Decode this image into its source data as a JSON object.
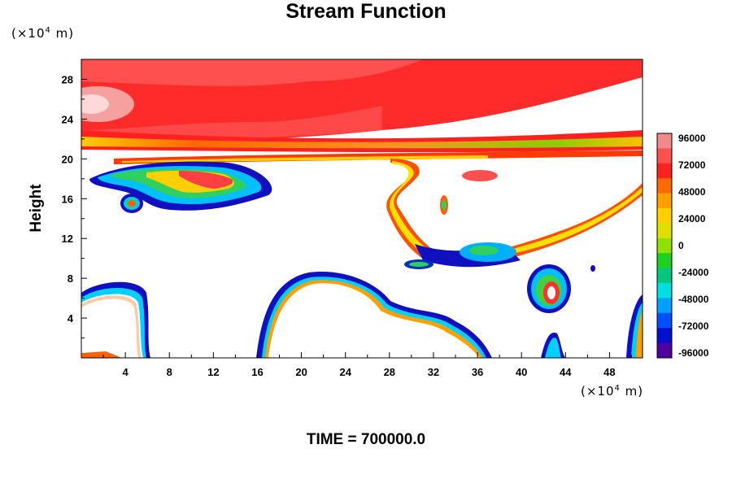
{
  "chart_data": {
    "type": "heatmap",
    "title": "Stream Function",
    "ylabel": "Height",
    "xlabel": "",
    "y_unit": "(×10⁴ m)",
    "x_unit": "(×10⁴ m)",
    "x_unit_mantissa": "(×10",
    "x_unit_exp": "4",
    "x_unit_tail": " m)",
    "footer": "TIME = 700000.0",
    "xlim": [
      0,
      51
    ],
    "ylim": [
      0,
      30
    ],
    "x_ticks": [
      4,
      8,
      12,
      16,
      20,
      24,
      28,
      32,
      36,
      40,
      44,
      48
    ],
    "x_tick_labels": [
      "4",
      "8",
      "12",
      "16",
      "20",
      "24",
      "28",
      "32",
      "36",
      "40",
      "44",
      "48"
    ],
    "y_ticks": [
      4,
      8,
      12,
      16,
      20,
      24,
      28
    ],
    "y_tick_labels": [
      "4",
      "8",
      "12",
      "16",
      "20",
      "24",
      "28"
    ],
    "colorbar": {
      "min": -96000,
      "max": 96000,
      "labels": [
        "96000",
        "72000",
        "48000",
        "24000",
        "0",
        "-24000",
        "-48000",
        "-72000",
        "-96000"
      ],
      "colors": [
        "#f08a8a",
        "#ff5050",
        "#ff2020",
        "#ff6a00",
        "#ffa000",
        "#ffd000",
        "#e0e000",
        "#90e000",
        "#20d020",
        "#00c880",
        "#00e0e0",
        "#00a0ff",
        "#0050ff",
        "#0010d0",
        "#5000a0"
      ]
    }
  }
}
